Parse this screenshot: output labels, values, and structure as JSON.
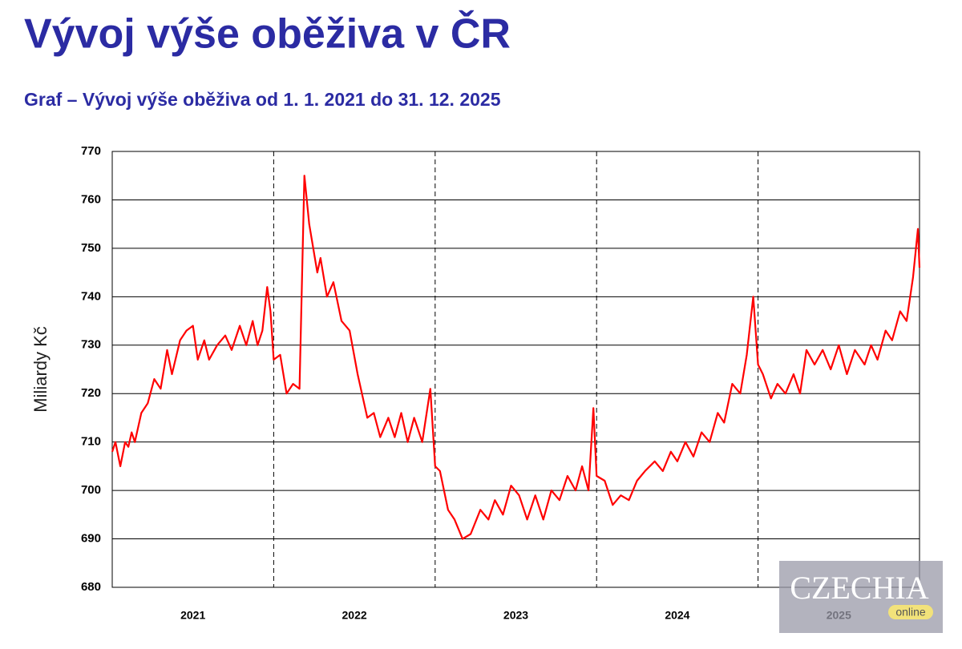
{
  "title": "Vývoj výše oběživa v ČR",
  "chart_data": {
    "type": "line",
    "subtitle": "Graf – Vývoj výše oběživa od 1. 1. 2021 do 31. 12. 2025",
    "y_label": "Miliardy Kč",
    "categories": [
      "2021",
      "2022",
      "2023",
      "2024",
      "2025"
    ],
    "xlim": [
      2021,
      2026
    ],
    "ylim": [
      680,
      770
    ],
    "yticks": [
      680,
      690,
      700,
      710,
      720,
      730,
      740,
      750,
      760,
      770
    ],
    "grid": true,
    "series": [
      {
        "color": "#ff0000",
        "x": [
          2021.0,
          2021.02,
          2021.05,
          2021.08,
          2021.1,
          2021.12,
          2021.14,
          2021.18,
          2021.22,
          2021.26,
          2021.3,
          2021.34,
          2021.37,
          2021.42,
          2021.46,
          2021.5,
          2021.53,
          2021.57,
          2021.6,
          2021.65,
          2021.7,
          2021.74,
          2021.79,
          2021.83,
          2021.87,
          2021.9,
          2021.93,
          2021.96,
          2021.98,
          2022.0,
          2022.04,
          2022.08,
          2022.12,
          2022.16,
          2022.19,
          2022.22,
          2022.27,
          2022.29,
          2022.33,
          2022.37,
          2022.42,
          2022.47,
          2022.52,
          2022.58,
          2022.62,
          2022.66,
          2022.71,
          2022.75,
          2022.79,
          2022.83,
          2022.87,
          2022.92,
          2022.97,
          2023.0,
          2023.03,
          2023.08,
          2023.12,
          2023.17,
          2023.22,
          2023.28,
          2023.33,
          2023.37,
          2023.42,
          2023.47,
          2023.52,
          2023.57,
          2023.62,
          2023.67,
          2023.72,
          2023.77,
          2023.82,
          2023.87,
          2023.91,
          2023.95,
          2023.98,
          2024.0,
          2024.05,
          2024.1,
          2024.15,
          2024.2,
          2024.25,
          2024.3,
          2024.36,
          2024.41,
          2024.46,
          2024.5,
          2024.55,
          2024.6,
          2024.65,
          2024.7,
          2024.75,
          2024.79,
          2024.84,
          2024.89,
          2024.93,
          2024.97,
          2025.0,
          2025.03,
          2025.08,
          2025.12,
          2025.17,
          2025.22,
          2025.26,
          2025.3,
          2025.35,
          2025.4,
          2025.45,
          2025.5,
          2025.55,
          2025.6,
          2025.66,
          2025.7,
          2025.74,
          2025.79,
          2025.83,
          2025.88,
          2025.92,
          2025.96,
          2025.99,
          2026.0
        ],
        "values": [
          708,
          710,
          705,
          710,
          709,
          712,
          710,
          716,
          718,
          723,
          721,
          729,
          724,
          731,
          733,
          734,
          727,
          731,
          727,
          730,
          732,
          729,
          734,
          730,
          735,
          730,
          733,
          742,
          737,
          727,
          728,
          720,
          722,
          721,
          765,
          755,
          745,
          748,
          740,
          743,
          735,
          733,
          724,
          715,
          716,
          711,
          715,
          711,
          716,
          710,
          715,
          710,
          721,
          705,
          704,
          696,
          694,
          690,
          691,
          696,
          694,
          698,
          695,
          701,
          699,
          694,
          699,
          694,
          700,
          698,
          703,
          700,
          705,
          700,
          717,
          703,
          702,
          697,
          699,
          698,
          702,
          704,
          706,
          704,
          708,
          706,
          710,
          707,
          712,
          710,
          716,
          714,
          722,
          720,
          728,
          740,
          726,
          724,
          719,
          722,
          720,
          724,
          720,
          729,
          726,
          729,
          725,
          730,
          724,
          729,
          726,
          730,
          727,
          733,
          731,
          737,
          735,
          744,
          754,
          746
        ]
      }
    ]
  },
  "watermark": {
    "brand": "CZECHIA",
    "tag": "online"
  }
}
